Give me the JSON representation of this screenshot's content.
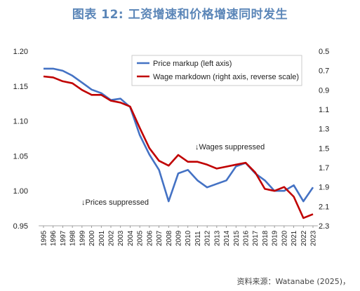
{
  "title": "图表 12: 工资增速和价格增速同时发生",
  "source": "资料来源：Watanabe (2025)，",
  "chart_data": {
    "type": "line",
    "x": [
      1995,
      1996,
      1997,
      1998,
      1999,
      2000,
      2001,
      2002,
      2003,
      2004,
      2005,
      2006,
      2007,
      2008,
      2009,
      2010,
      2011,
      2012,
      2013,
      2014,
      2015,
      2016,
      2017,
      2018,
      2019,
      2020,
      2021,
      2022,
      2023
    ],
    "left_axis": {
      "ylim": [
        0.95,
        1.2
      ],
      "ticks": [
        "0.95",
        "1.00",
        "1.05",
        "1.10",
        "1.15",
        "1.20"
      ]
    },
    "right_axis": {
      "ylim": [
        0.5,
        2.3
      ],
      "reverse": true,
      "ticks": [
        "0.5",
        "0.7",
        "0.9",
        "1.1",
        "1.3",
        "1.5",
        "1.7",
        "1.9",
        "2.1",
        "2.3"
      ]
    },
    "series": [
      {
        "name": "Price markup (left axis)",
        "axis": "left",
        "color": "#4472c4",
        "values": [
          1.175,
          1.175,
          1.172,
          1.165,
          1.155,
          1.145,
          1.14,
          1.13,
          1.132,
          1.12,
          1.08,
          1.052,
          1.03,
          0.985,
          1.025,
          1.03,
          1.015,
          1.005,
          1.01,
          1.015,
          1.035,
          1.04,
          1.025,
          1.015,
          1.0,
          1.0,
          1.008,
          0.985,
          1.005
        ]
      },
      {
        "name": "Wage markdown (right axis, reverse scale)",
        "axis": "right",
        "color": "#c00000",
        "values": [
          0.76,
          0.77,
          0.81,
          0.83,
          0.9,
          0.95,
          0.95,
          1.01,
          1.03,
          1.07,
          1.29,
          1.5,
          1.63,
          1.68,
          1.57,
          1.64,
          1.64,
          1.67,
          1.71,
          1.69,
          1.67,
          1.65,
          1.75,
          1.92,
          1.94,
          1.9,
          2.0,
          2.22,
          2.18
        ]
      }
    ],
    "annotations": [
      {
        "text": "↓Wages suppressed",
        "color": "#c00000"
      },
      {
        "text": "↓Prices suppressed",
        "color": "#2e75b6"
      }
    ],
    "legend_position": "top-right",
    "grid": false
  }
}
